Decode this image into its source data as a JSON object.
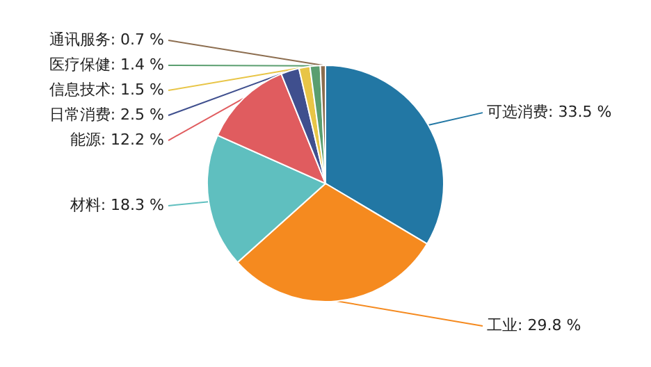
{
  "chart_data": {
    "type": "pie",
    "categories": [
      "可选消费",
      "工业",
      "材料",
      "能源",
      "日常消费",
      "信息技术",
      "医疗保健",
      "通讯服务"
    ],
    "values": [
      33.5,
      29.8,
      18.3,
      12.2,
      2.5,
      1.5,
      1.4,
      0.7
    ],
    "colors": [
      "#2277a4",
      "#f58a1f",
      "#5fbfbf",
      "#e05c5f",
      "#3f4f8e",
      "#e8c547",
      "#5a9e6f",
      "#8c6d4f"
    ],
    "value_labels": [
      "33.5 %",
      "29.8 %",
      "18.3 %",
      "12.2 %",
      "2.5 %",
      "1.5 %",
      "1.4 %",
      "0.7 %"
    ]
  }
}
